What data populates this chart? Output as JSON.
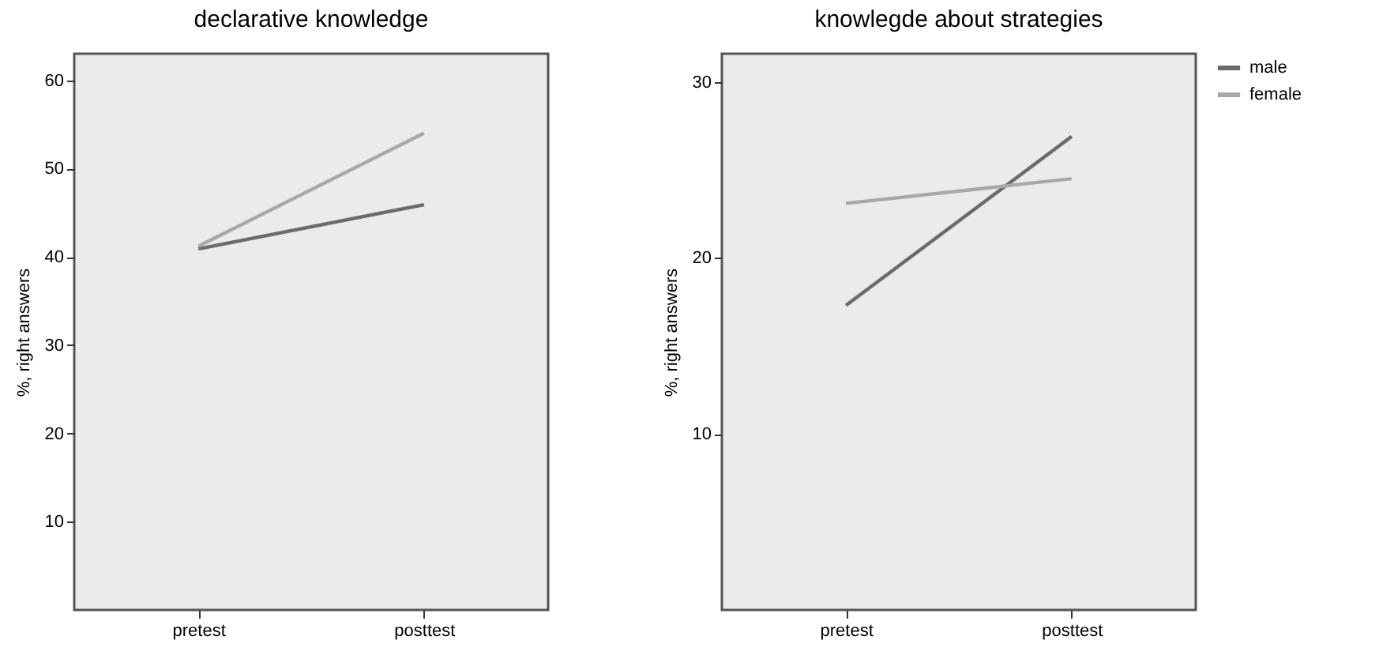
{
  "chart_data": [
    {
      "type": "line",
      "title": "declarative knowledge",
      "ylabel": "%, right answers",
      "categories": [
        "pretest",
        "posttest"
      ],
      "ylim": [
        0,
        63
      ],
      "yticks": [
        10,
        20,
        30,
        40,
        50,
        60
      ],
      "grid": false,
      "legend": false,
      "series": [
        {
          "color": "#6b6b6b",
          "values": [
            40.9,
            45.9
          ]
        },
        {
          "color": "#a8a8a8",
          "values": [
            41.2,
            54.0
          ]
        }
      ]
    },
    {
      "type": "line",
      "title": "knowlegde about strategies",
      "ylabel": "%, right answers",
      "categories": [
        "pretest",
        "posttest"
      ],
      "ylim": [
        0,
        31.6
      ],
      "yticks": [
        10,
        20,
        30
      ],
      "grid": false,
      "legend": "top right",
      "series": [
        {
          "name": "male",
          "color": "#6b6b6b",
          "values": [
            17.3,
            26.9
          ]
        },
        {
          "name": "female",
          "color": "#a8a8a8",
          "values": [
            23.1,
            24.5
          ]
        }
      ]
    }
  ]
}
